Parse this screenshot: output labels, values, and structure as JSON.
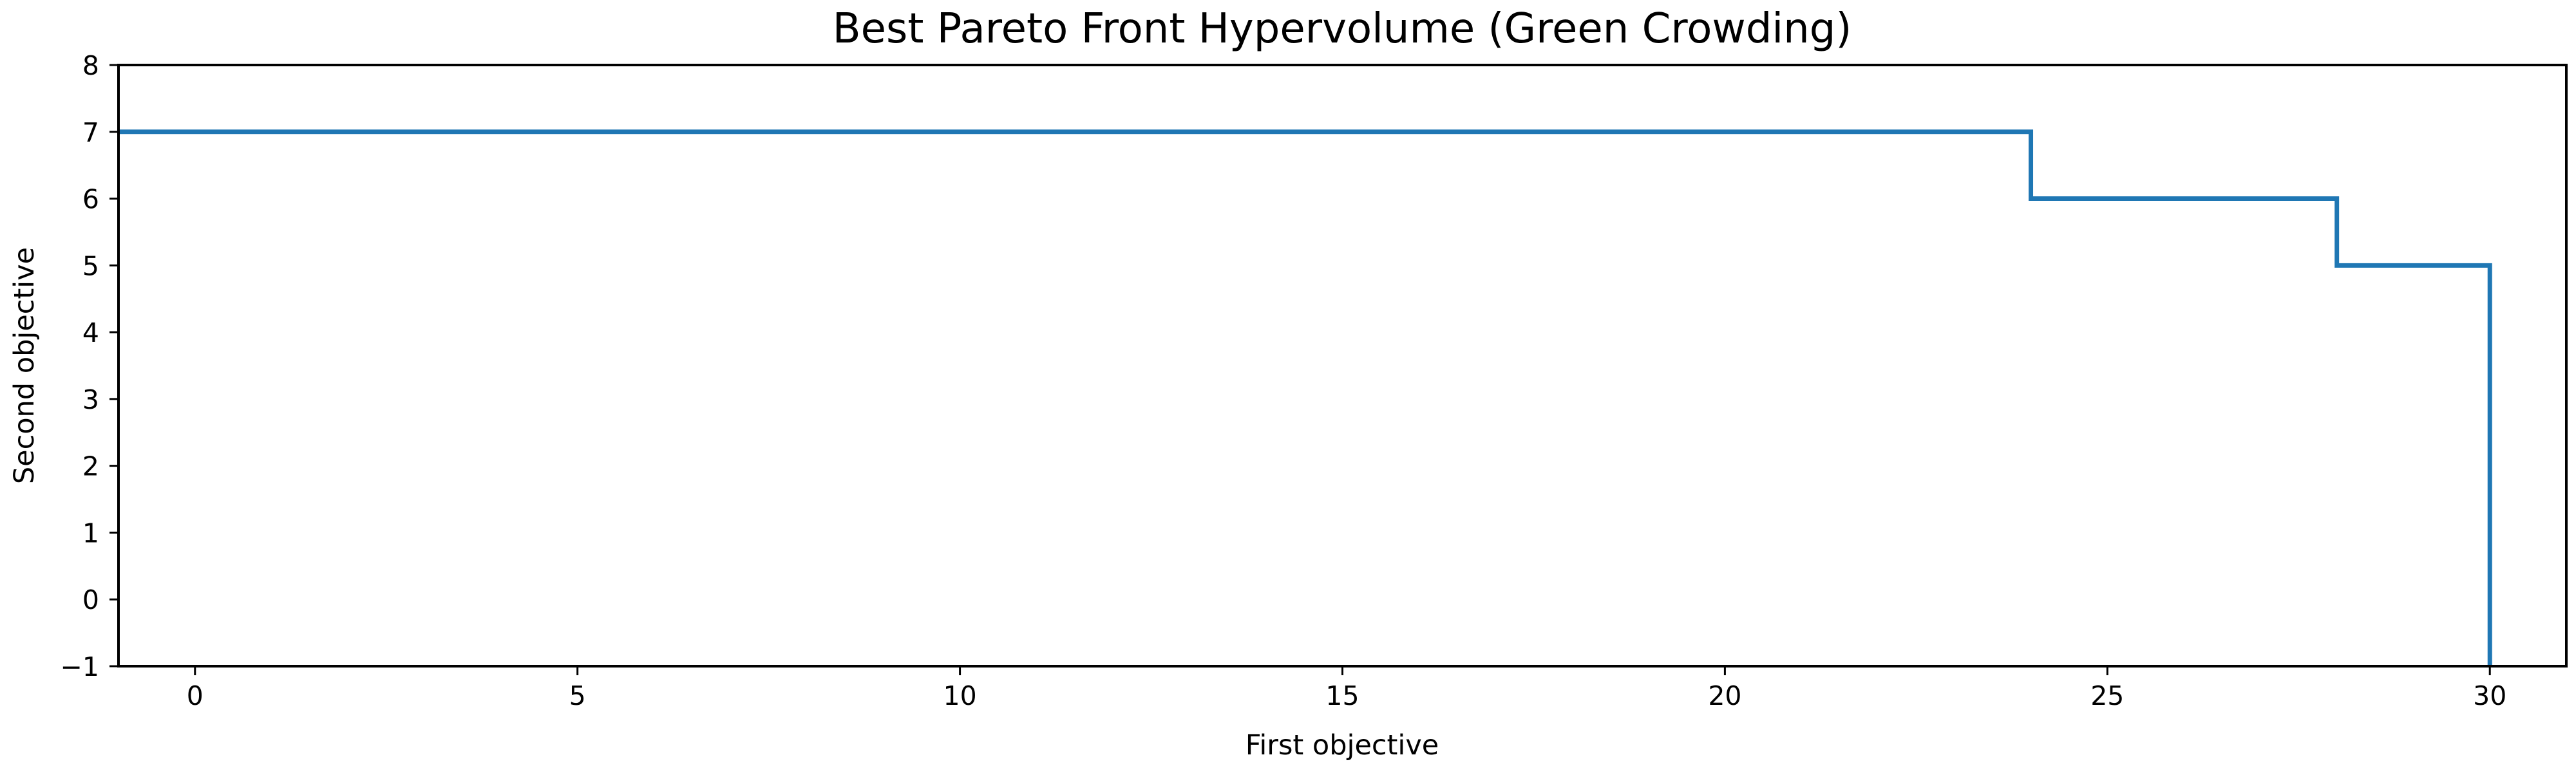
{
  "chart_data": {
    "type": "line",
    "step": "post",
    "title": "Best Pareto Front Hypervolume (Green Crowding)",
    "xlabel": "First objective",
    "ylabel": "Second objective",
    "xlim": [
      -1,
      31
    ],
    "ylim": [
      -1,
      8
    ],
    "xticks": [
      0,
      5,
      10,
      15,
      20,
      25,
      30
    ],
    "yticks": [
      -1,
      0,
      1,
      2,
      3,
      4,
      5,
      6,
      7,
      8
    ],
    "xtick_labels": [
      "0",
      "5",
      "10",
      "15",
      "20",
      "25",
      "30"
    ],
    "ytick_labels": [
      "−1",
      "0",
      "1",
      "2",
      "3",
      "4",
      "5",
      "6",
      "7",
      "8"
    ],
    "grid": false,
    "series": [
      {
        "color": "#1f77b4",
        "x": [
          -1,
          24,
          28,
          30,
          30
        ],
        "y": [
          7,
          6,
          5,
          -1,
          -1
        ]
      }
    ]
  }
}
